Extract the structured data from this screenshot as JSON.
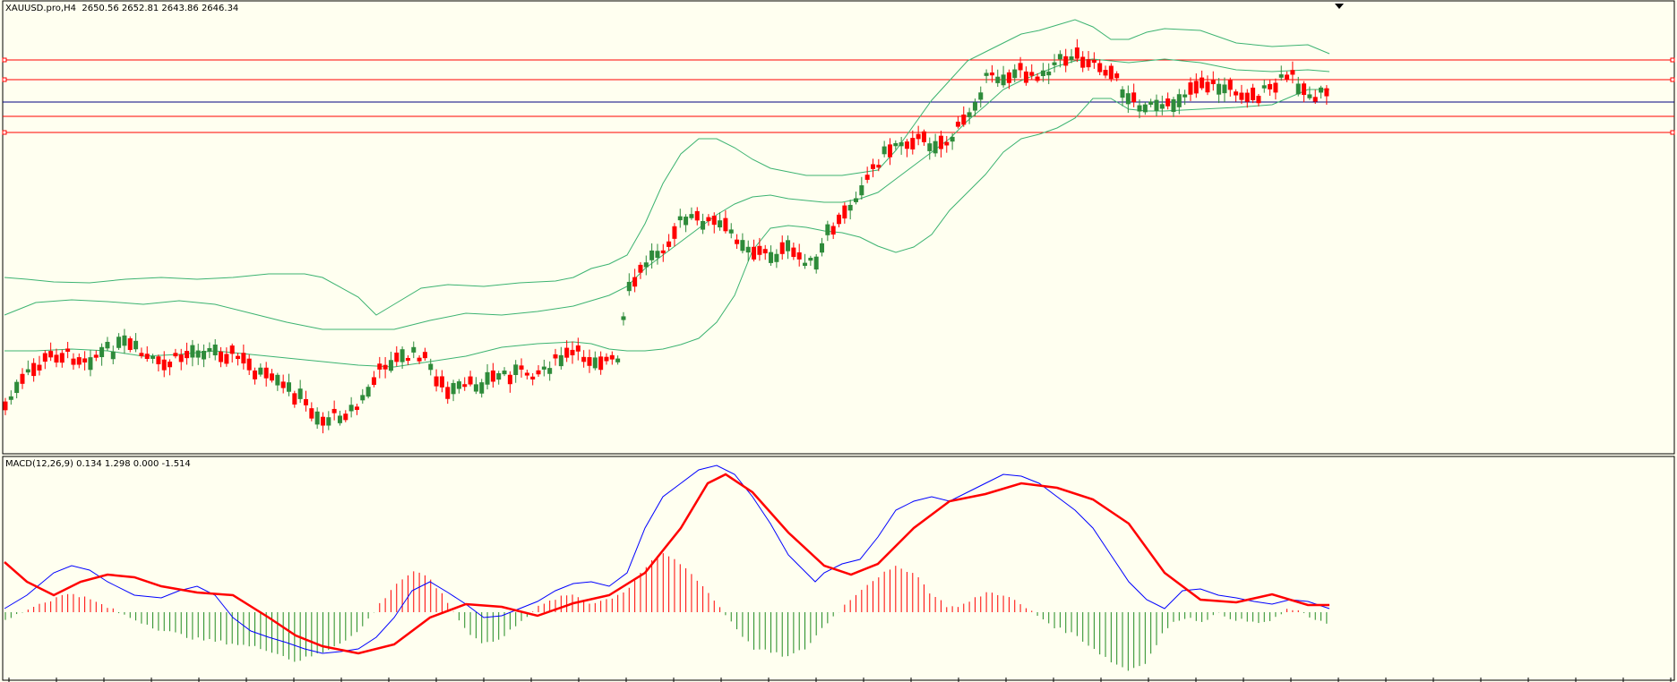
{
  "chart_data": [
    {
      "type": "candlestick",
      "symbol": "XAUUSD.pro",
      "timeframe": "H4",
      "header_label": "XAUUSD.pro,H4",
      "ohlc_label": "2650.56 2652.81 2643.86 2646.34",
      "last_ohlc": {
        "open": 2650.56,
        "high": 2652.81,
        "low": 2643.86,
        "close": 2646.34
      },
      "grid": false,
      "legend": "none",
      "colors": {
        "bull": "#2e8b3a",
        "bear": "#ff0000",
        "bands": "#3cb371",
        "hline": "#ff0000",
        "current_price_line": "#000000"
      },
      "indicators": [
        "Bollinger Bands"
      ],
      "horizontal_lines_count": 4
    },
    {
      "type": "macd",
      "label": "MACD(12,26,9) 0.134 1.298 0.000 -1.514",
      "params": [
        12,
        26,
        9
      ],
      "values": [
        0.134,
        1.298,
        0.0,
        -1.514
      ],
      "colors": {
        "macd_line": "#0000ff",
        "signal_line": "#ff0000",
        "hist_pos": "#ff0000",
        "hist_neg": "#228b22"
      }
    }
  ]
}
